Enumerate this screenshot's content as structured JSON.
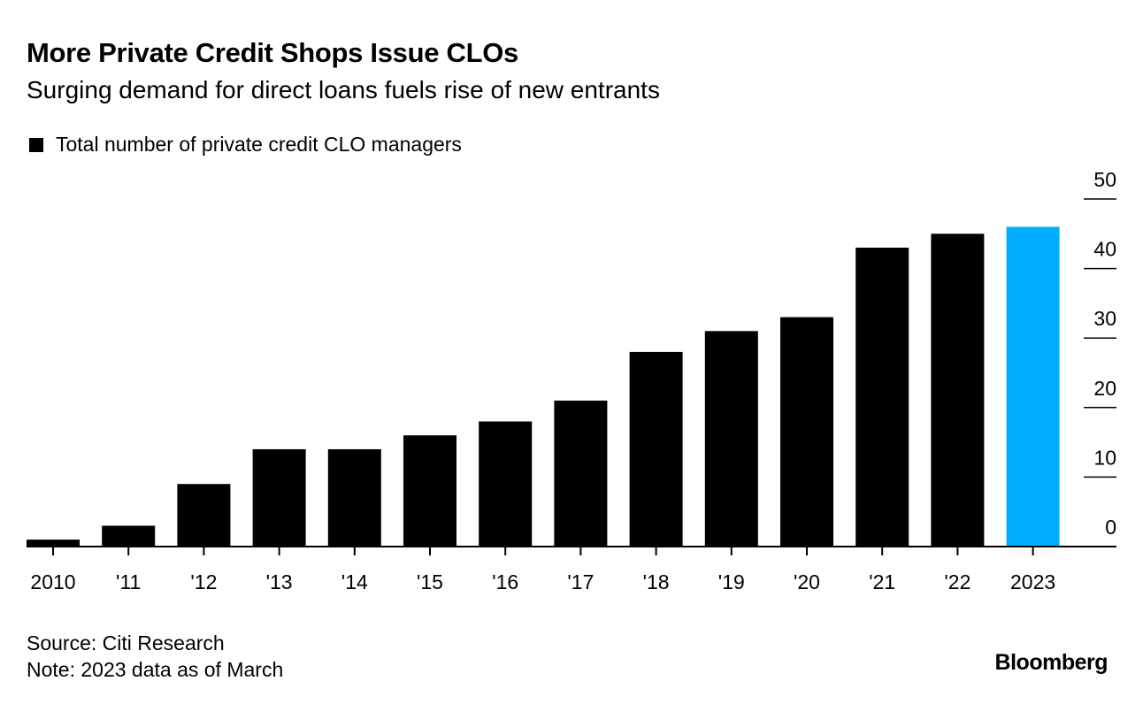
{
  "title": "More Private Credit Shops Issue CLOs",
  "subtitle": "Surging demand for direct loans fuels rise of new entrants",
  "legend_label": "Total number of private credit CLO managers",
  "source": "Source: Citi Research",
  "note": "Note: 2023 data as of March",
  "logo": "Bloomberg",
  "chart_data": {
    "type": "bar",
    "categories": [
      "2010",
      "'11",
      "'12",
      "'13",
      "'14",
      "'15",
      "'16",
      "'17",
      "'18",
      "'19",
      "'20",
      "'21",
      "'22",
      "2023"
    ],
    "series": [
      {
        "name": "Total number of private credit CLO managers",
        "values": [
          1,
          3,
          9,
          14,
          14,
          16,
          18,
          21,
          28,
          31,
          33,
          43,
          45,
          46
        ]
      }
    ],
    "ylim": [
      0,
      50
    ],
    "yticks": [
      0,
      10,
      20,
      30,
      40,
      50
    ],
    "y_axis_side": "right",
    "grid": false,
    "legend_placement": "top-left",
    "colors": {
      "default": "#000000",
      "highlight": "#00aeff"
    },
    "highlight_category": "2023"
  }
}
